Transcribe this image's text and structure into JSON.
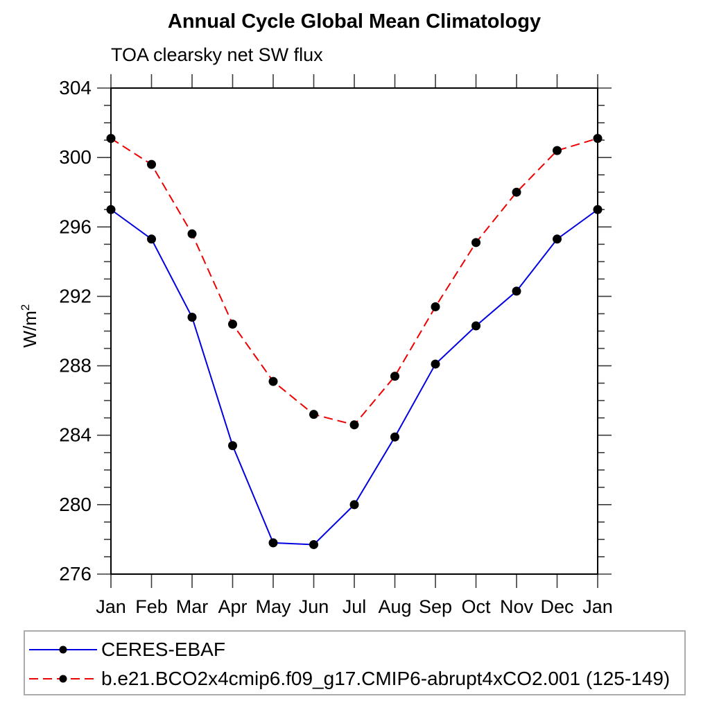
{
  "chart_data": {
    "type": "line",
    "title": "Annual Cycle Global Mean Climatology",
    "subtitle": "TOA clearsky net SW flux",
    "ylabel_base": "W/m",
    "ylabel_exponent": "2",
    "categories": [
      "Jan",
      "Feb",
      "Mar",
      "Apr",
      "May",
      "Jun",
      "Jul",
      "Aug",
      "Sep",
      "Oct",
      "Nov",
      "Dec",
      "Jan"
    ],
    "ylim": [
      276,
      304
    ],
    "ytick_major_step": 4,
    "ytick_minor_step": 1,
    "ytick_labels": [
      "276",
      "280",
      "284",
      "288",
      "292",
      "296",
      "300",
      "304"
    ],
    "grid": false,
    "legend_position": "bottom",
    "axis_color": "#000000",
    "tick_color": "#3a3a3a",
    "marker_color": "#000000",
    "legend_border_color": "#ababab",
    "series": [
      {
        "name": "CERES-EBAF",
        "color": "#0000e0",
        "style": "solid",
        "marker": "circle",
        "values": [
          297.0,
          295.3,
          290.8,
          283.4,
          277.8,
          277.7,
          280.0,
          283.9,
          288.1,
          290.3,
          292.3,
          295.3,
          297.0
        ]
      },
      {
        "name": "b.e21.BCO2x4cmip6.f09_g17.CMIP6-abrupt4xCO2.001 (125-149)",
        "color": "#ee0000",
        "style": "dashed",
        "marker": "circle",
        "values": [
          301.1,
          299.6,
          295.6,
          290.4,
          287.1,
          285.2,
          284.6,
          287.4,
          291.4,
          295.1,
          298.0,
          300.4,
          301.1
        ]
      }
    ]
  }
}
